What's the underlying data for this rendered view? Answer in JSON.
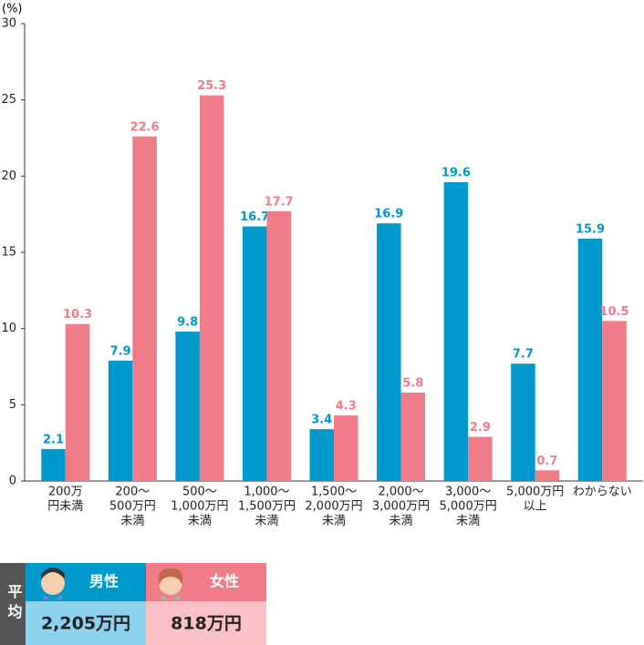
{
  "chart_data": {
    "type": "bar",
    "y_unit": "(%)",
    "categories": [
      [
        "200万",
        "円未満"
      ],
      [
        "200〜",
        "500万円",
        "未満"
      ],
      [
        "500〜",
        "1,000万円",
        "未満"
      ],
      [
        "1,000〜",
        "1,500万円",
        "未満"
      ],
      [
        "1,500〜",
        "2,000万円",
        "未満"
      ],
      [
        "2,000〜",
        "3,000万円",
        "未満"
      ],
      [
        "3,000〜",
        "5,000万円",
        "未満"
      ],
      [
        "5,000万円",
        "以上"
      ],
      [
        "わからない"
      ]
    ],
    "series": [
      {
        "name": "男性",
        "color": "#0099cc",
        "values": [
          2.1,
          7.9,
          9.8,
          16.7,
          3.4,
          16.9,
          19.6,
          7.7,
          15.9
        ]
      },
      {
        "name": "女性",
        "color": "#f07c8a",
        "values": [
          10.3,
          22.6,
          25.3,
          17.7,
          4.3,
          5.8,
          2.9,
          0.7,
          10.5
        ]
      }
    ],
    "ylim": [
      0,
      30
    ],
    "yticks": [
      0,
      5,
      10,
      15,
      20,
      25,
      30
    ],
    "grid": false,
    "average": {
      "label": "平均",
      "values": [
        "2,205万円",
        "818万円"
      ]
    }
  }
}
